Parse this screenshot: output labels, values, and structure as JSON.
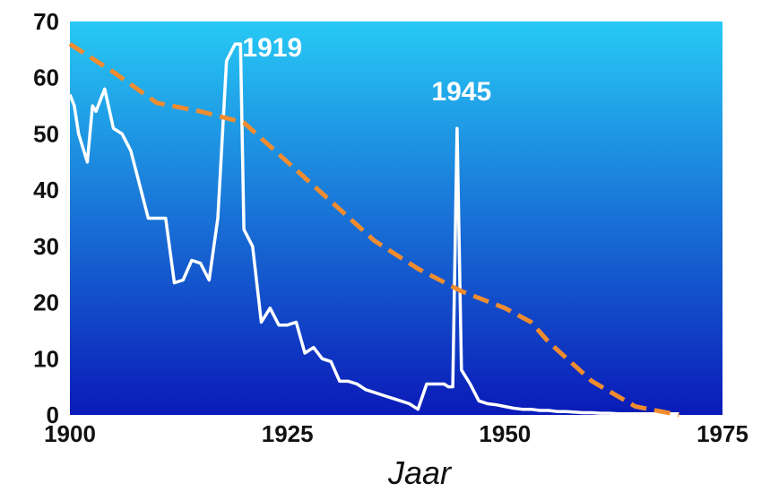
{
  "chart_data": {
    "type": "line",
    "title": "",
    "xlabel": "Jaar",
    "ylabel": "",
    "xlim": [
      1900,
      1975
    ],
    "ylim": [
      0,
      70
    ],
    "x_ticks": [
      1900,
      1925,
      1950,
      1975
    ],
    "y_ticks": [
      0,
      10,
      20,
      30,
      40,
      50,
      60,
      70
    ],
    "grid": false,
    "legend": "none",
    "background_gradient": [
      "#27c9f5",
      "#0a1ab8"
    ],
    "series": [
      {
        "color": "#ffffff",
        "style": "solid",
        "x": [
          1900,
          1900.5,
          1901,
          1902,
          1902.6,
          1903,
          1904,
          1905,
          1906,
          1907,
          1908,
          1909,
          1910,
          1911,
          1912,
          1913,
          1914,
          1915,
          1916,
          1917,
          1918,
          1919,
          1919.6,
          1920,
          1921,
          1922,
          1923,
          1924,
          1925,
          1926,
          1927,
          1928,
          1929,
          1930,
          1931,
          1932,
          1933,
          1934,
          1935,
          1936,
          1937,
          1938,
          1939,
          1940,
          1941,
          1942,
          1943,
          1943.5,
          1944,
          1944.5,
          1945,
          1946,
          1947,
          1948,
          1949,
          1950,
          1951,
          1952,
          1953,
          1954,
          1955,
          1956,
          1957,
          1958,
          1959,
          1960,
          1961,
          1962,
          1963,
          1964,
          1965,
          1966,
          1967,
          1968,
          1969,
          1970
        ],
        "y": [
          57,
          55,
          50,
          45,
          55,
          54,
          58,
          51,
          50,
          47,
          41,
          35,
          35,
          35,
          23.5,
          24,
          27.5,
          27,
          24,
          35,
          63,
          66,
          66,
          33,
          30,
          16.5,
          19,
          16,
          16,
          16.5,
          11,
          12,
          10,
          9.5,
          6,
          6,
          5.5,
          4.5,
          4,
          3.5,
          3,
          2.5,
          2,
          1,
          5.5,
          5.5,
          5.5,
          5,
          5,
          51,
          8,
          5.5,
          2.5,
          2,
          1.8,
          1.5,
          1.2,
          1,
          1,
          0.8,
          0.8,
          0.6,
          0.6,
          0.5,
          0.4,
          0.4,
          0.3,
          0.3,
          0.2,
          0.2,
          0.2,
          0.2,
          0.2,
          0.2,
          0.2,
          0.2
        ]
      },
      {
        "color": "#f08c30",
        "style": "dashed",
        "x": [
          1900,
          1905,
          1910,
          1915,
          1920,
          1925,
          1930,
          1935,
          1940,
          1945,
          1950,
          1953,
          1955,
          1960,
          1965,
          1970
        ],
        "y": [
          66,
          61,
          55.5,
          54,
          52,
          45,
          38,
          31,
          26,
          22,
          19,
          16.5,
          13,
          6,
          1.5,
          0
        ]
      }
    ],
    "annotations": [
      {
        "text": "1919",
        "x": 1919,
        "y": 66
      },
      {
        "text": "1945",
        "x": 1945,
        "y": 56
      }
    ]
  }
}
